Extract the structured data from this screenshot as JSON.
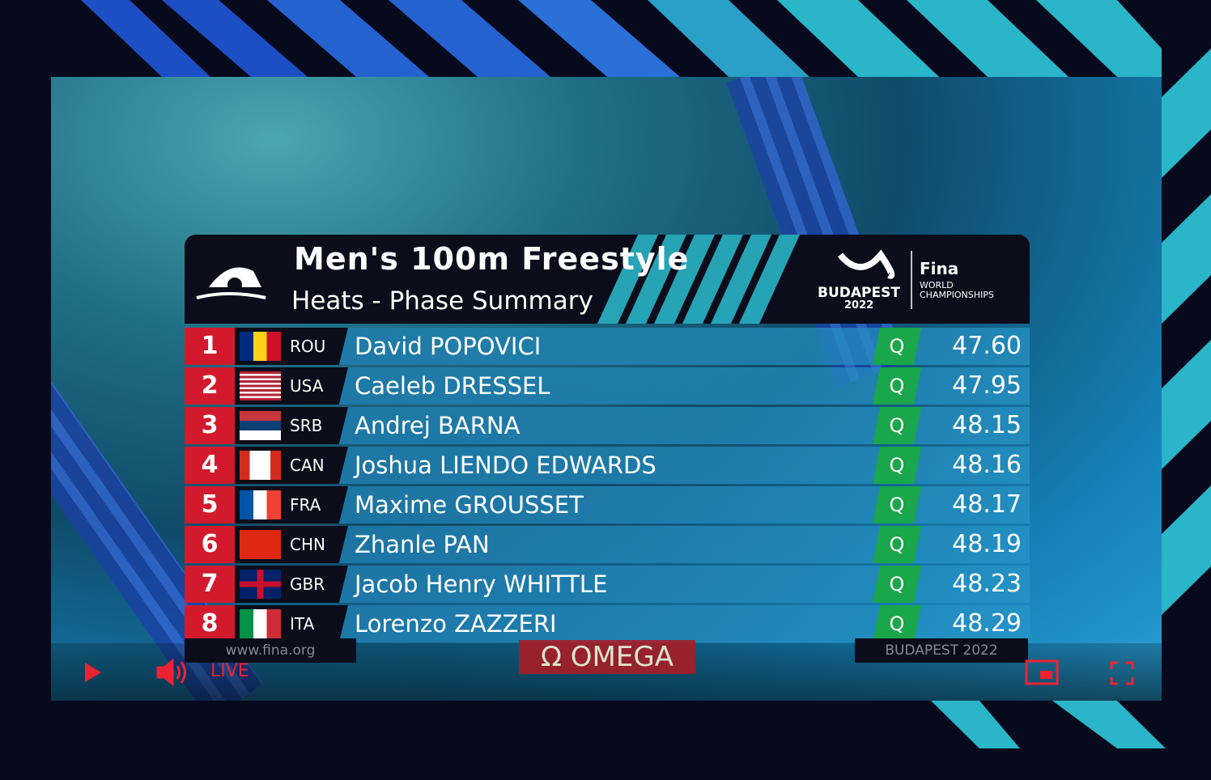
{
  "header": {
    "title": "Men's 100m Freestyle",
    "subtitle": "Heats - Phase Summary",
    "logo": {
      "city": "BUDAPEST",
      "year": "2022",
      "brand": "Fina",
      "line1": "WORLD",
      "line2": "CHAMPIONSHIPS"
    }
  },
  "table": {
    "rows": [
      {
        "rank": 1,
        "country": "ROU",
        "name": "David POPOVICI",
        "status": "Q",
        "time": "47.60"
      },
      {
        "rank": 2,
        "country": "USA",
        "name": "Caeleb DRESSEL",
        "status": "Q",
        "time": "47.95"
      },
      {
        "rank": 3,
        "country": "SRB",
        "name": "Andrej BARNA",
        "status": "Q",
        "time": "48.15"
      },
      {
        "rank": 4,
        "country": "CAN",
        "name": "Joshua LIENDO EDWARDS",
        "status": "Q",
        "time": "48.16"
      },
      {
        "rank": 5,
        "country": "FRA",
        "name": "Maxime GROUSSET",
        "status": "Q",
        "time": "48.17"
      },
      {
        "rank": 6,
        "country": "CHN",
        "name": "Zhanle PAN",
        "status": "Q",
        "time": "48.19"
      },
      {
        "rank": 7,
        "country": "GBR",
        "name": "Jacob Henry WHITTLE",
        "status": "Q",
        "time": "48.23"
      },
      {
        "rank": 8,
        "country": "ITA",
        "name": "Lorenzo ZAZZERI",
        "status": "Q",
        "time": "48.29"
      }
    ]
  },
  "footer": {
    "website": "www.fina.org",
    "sponsor": "Ω OMEGA",
    "event": "BUDAPEST 2022"
  },
  "player": {
    "live": "LIVE"
  }
}
